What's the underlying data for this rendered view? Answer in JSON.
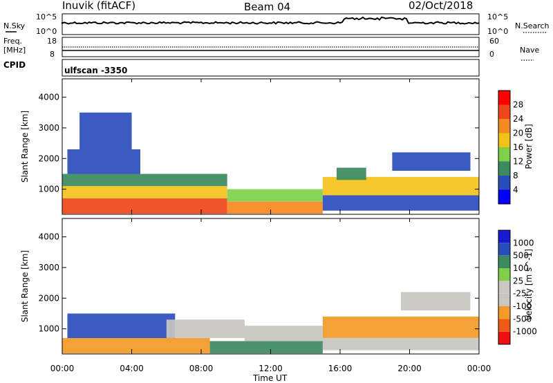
{
  "header": {
    "station": "Inuvik (fitACF)",
    "beam": "Beam 04",
    "date": "02/Oct/2018"
  },
  "noise_panel": {
    "left_label": "N.Sky",
    "right_label": "N.Search",
    "left_ticks": [
      "10^5",
      "10^0"
    ],
    "right_ticks": [
      "10^5",
      "10^0"
    ]
  },
  "freq_panel": {
    "left_label_line1": "Freq.",
    "left_label_line2": "[MHz]",
    "right_label": "Nave",
    "left_ticks": [
      "18",
      "8"
    ],
    "right_ticks": [
      "60",
      "0"
    ]
  },
  "cpid_panel": {
    "label": "CPID",
    "text": "ulfscan -3350"
  },
  "colors": {
    "power_scale": [
      "#0000ff",
      "#2a4dbd",
      "#3d8a5e",
      "#7fcf4a",
      "#f2c21b",
      "#f58a1e",
      "#f0461a",
      "#ff0000"
    ],
    "velocity_scale": [
      "#ee1111",
      "#f15a15",
      "#f39a27",
      "#c8c6c0",
      "#c8c6c0",
      "#7fcf4a",
      "#3d8a5e",
      "#2a4dbd",
      "#1a1ad0"
    ]
  },
  "chart_data": [
    {
      "type": "heatmap",
      "title": "",
      "quantity": "Power",
      "xlabel": "",
      "ylabel": "Slant Range [km]",
      "x_ticks": [
        "00:00",
        "04:00",
        "08:00",
        "12:00",
        "16:00",
        "20:00",
        "00:00"
      ],
      "xlim_hours": [
        0,
        24
      ],
      "ylim": [
        180,
        4600
      ],
      "y_ticks": [
        1000,
        2000,
        3000,
        4000
      ],
      "colorbar": {
        "label": "Power [dB]",
        "range": [
          0,
          32
        ],
        "ticks": [
          4,
          8,
          12,
          16,
          20,
          24,
          28
        ]
      },
      "regions": [
        {
          "t0": 0.0,
          "t1": 9.5,
          "r0": 200,
          "r1": 700,
          "value": 26
        },
        {
          "t0": 0.0,
          "t1": 9.5,
          "r0": 700,
          "r1": 1100,
          "value": 18
        },
        {
          "t0": 0.0,
          "t1": 9.5,
          "r0": 1100,
          "r1": 1500,
          "value": 8
        },
        {
          "t0": 0.3,
          "t1": 4.5,
          "r0": 1500,
          "r1": 2300,
          "value": 7
        },
        {
          "t0": 1.0,
          "t1": 4.0,
          "r0": 2300,
          "r1": 3500,
          "value": 5
        },
        {
          "t0": 9.5,
          "t1": 15.0,
          "r0": 200,
          "r1": 600,
          "value": 22
        },
        {
          "t0": 9.5,
          "t1": 15.0,
          "r0": 600,
          "r1": 1000,
          "value": 12
        },
        {
          "t0": 15.0,
          "t1": 24.0,
          "r0": 800,
          "r1": 1400,
          "value": 18
        },
        {
          "t0": 15.0,
          "t1": 24.0,
          "r0": 300,
          "r1": 800,
          "value": 6
        },
        {
          "t0": 15.8,
          "t1": 17.5,
          "r0": 1300,
          "r1": 1700,
          "value": 10
        },
        {
          "t0": 19.0,
          "t1": 23.5,
          "r0": 1600,
          "r1": 2200,
          "value": 6
        }
      ]
    },
    {
      "type": "heatmap",
      "title": "",
      "quantity": "Velocity",
      "xlabel": "Time UT",
      "ylabel": "Slant Range [km]",
      "x_ticks": [
        "00:00",
        "04:00",
        "08:00",
        "12:00",
        "16:00",
        "20:00",
        "00:00"
      ],
      "xlim_hours": [
        0,
        24
      ],
      "ylim": [
        180,
        4600
      ],
      "y_ticks": [
        1000,
        2000,
        3000,
        4000
      ],
      "colorbar": {
        "label": "Velocity [m s^-1]",
        "labels": [
          "1000",
          "500",
          "100",
          "25",
          "-25",
          "-100",
          "-500",
          "-1000"
        ]
      },
      "regions": [
        {
          "t0": 0.0,
          "t1": 8.5,
          "r0": 200,
          "r1": 700,
          "value": -200
        },
        {
          "t0": 0.3,
          "t1": 6.5,
          "r0": 700,
          "r1": 1500,
          "value": 200
        },
        {
          "t0": 6.0,
          "t1": 10.5,
          "r0": 700,
          "r1": 1300,
          "value": 0
        },
        {
          "t0": 10.5,
          "t1": 15.0,
          "r0": 600,
          "r1": 1100,
          "value": 0
        },
        {
          "t0": 8.5,
          "t1": 15.0,
          "r0": 200,
          "r1": 600,
          "value": 80
        },
        {
          "t0": 15.0,
          "t1": 24.0,
          "r0": 700,
          "r1": 1400,
          "value": -200
        },
        {
          "t0": 15.0,
          "t1": 24.0,
          "r0": 300,
          "r1": 700,
          "value": -60
        },
        {
          "t0": 19.5,
          "t1": 23.5,
          "r0": 1600,
          "r1": 2200,
          "value": 0
        }
      ]
    }
  ]
}
